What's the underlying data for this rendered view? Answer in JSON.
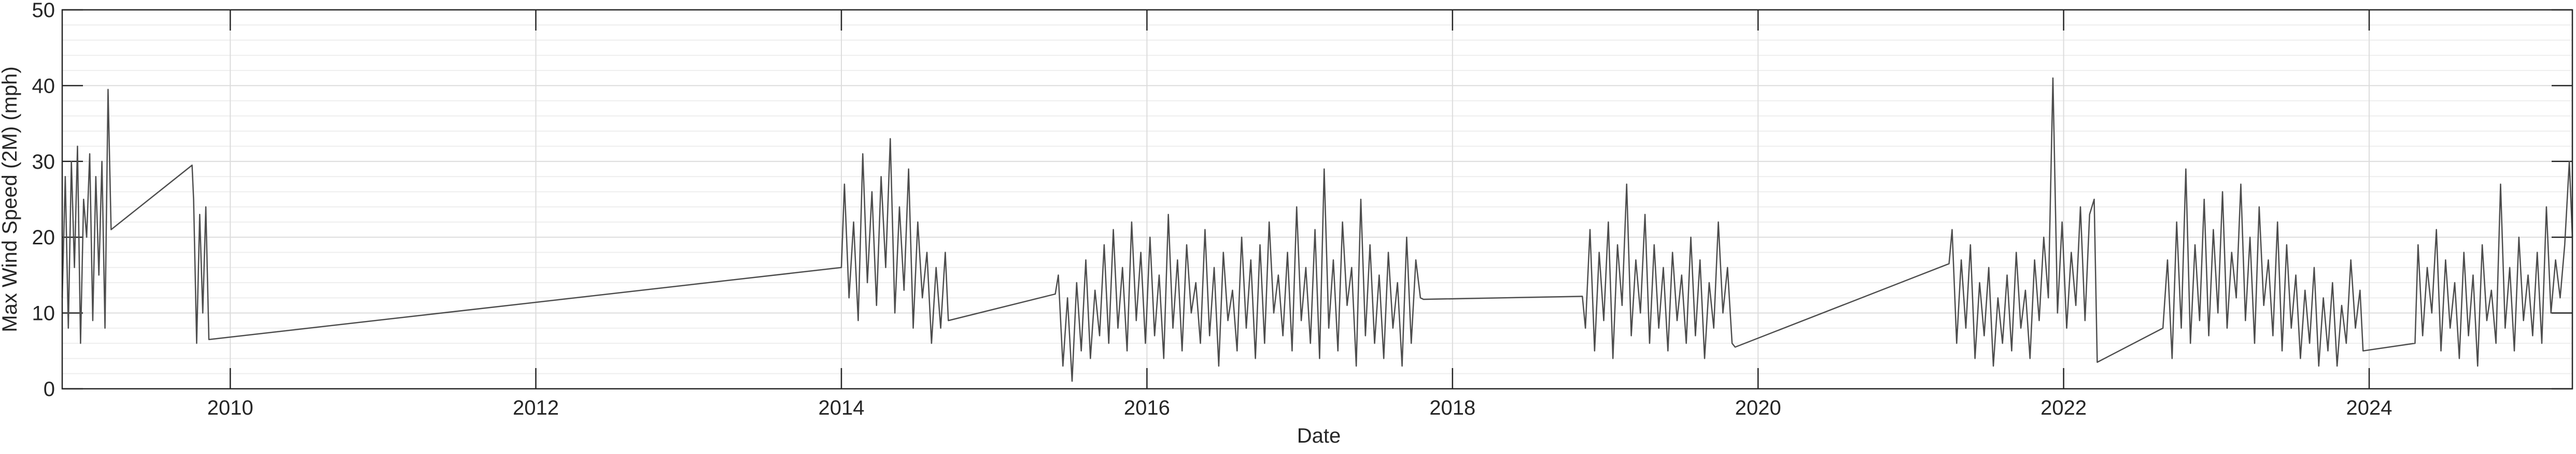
{
  "chart_data": {
    "type": "line",
    "x_label": "Date",
    "y_label": "Max Wind Speed (2M) (mph)",
    "color": "#4d4d4d",
    "grid": true,
    "minor_grid": true,
    "xlim": [
      2008.9,
      2025.33
    ],
    "xticks": [
      2010,
      2012,
      2014,
      2016,
      2018,
      2020,
      2022,
      2024
    ],
    "ylim": [
      0,
      50
    ],
    "yticks": [
      0,
      10,
      20,
      30,
      40,
      50
    ],
    "x": [
      2008.9,
      2008.92,
      2008.94,
      2008.96,
      2008.98,
      2009.0,
      2009.02,
      2009.04,
      2009.06,
      2009.08,
      2009.1,
      2009.12,
      2009.14,
      2009.16,
      2009.18,
      2009.2,
      2009.22,
      2009.75,
      2009.76,
      2009.78,
      2009.8,
      2009.82,
      2009.84,
      2009.86,
      2014.0,
      2014.02,
      2014.05,
      2014.08,
      2014.11,
      2014.14,
      2014.17,
      2014.2,
      2014.23,
      2014.26,
      2014.29,
      2014.32,
      2014.35,
      2014.38,
      2014.41,
      2014.44,
      2014.47,
      2014.5,
      2014.53,
      2014.56,
      2014.59,
      2014.62,
      2014.65,
      2014.68,
      2014.7,
      2015.4,
      2015.42,
      2015.45,
      2015.48,
      2015.51,
      2015.54,
      2015.57,
      2015.6,
      2015.63,
      2015.66,
      2015.69,
      2015.72,
      2015.75,
      2015.78,
      2015.81,
      2015.84,
      2015.87,
      2015.9,
      2015.93,
      2015.96,
      2015.99,
      2016.02,
      2016.05,
      2016.08,
      2016.11,
      2016.14,
      2016.17,
      2016.2,
      2016.23,
      2016.26,
      2016.29,
      2016.32,
      2016.35,
      2016.38,
      2016.41,
      2016.44,
      2016.47,
      2016.5,
      2016.53,
      2016.56,
      2016.59,
      2016.62,
      2016.65,
      2016.68,
      2016.71,
      2016.74,
      2016.77,
      2016.8,
      2016.83,
      2016.86,
      2016.89,
      2016.92,
      2016.95,
      2016.98,
      2017.01,
      2017.04,
      2017.07,
      2017.1,
      2017.13,
      2017.16,
      2017.19,
      2017.22,
      2017.25,
      2017.28,
      2017.31,
      2017.34,
      2017.37,
      2017.4,
      2017.43,
      2017.46,
      2017.49,
      2017.52,
      2017.55,
      2017.58,
      2017.61,
      2017.64,
      2017.67,
      2017.7,
      2017.73,
      2017.76,
      2017.79,
      2017.81,
      2018.85,
      2018.87,
      2018.9,
      2018.93,
      2018.96,
      2018.99,
      2019.02,
      2019.05,
      2019.08,
      2019.11,
      2019.14,
      2019.17,
      2019.2,
      2019.23,
      2019.26,
      2019.29,
      2019.32,
      2019.35,
      2019.38,
      2019.41,
      2019.44,
      2019.47,
      2019.5,
      2019.53,
      2019.56,
      2019.59,
      2019.62,
      2019.65,
      2019.68,
      2019.71,
      2019.74,
      2019.77,
      2019.8,
      2019.83,
      2019.85,
      2021.25,
      2021.27,
      2021.3,
      2021.33,
      2021.36,
      2021.39,
      2021.42,
      2021.45,
      2021.48,
      2021.51,
      2021.54,
      2021.57,
      2021.6,
      2021.63,
      2021.66,
      2021.69,
      2021.72,
      2021.75,
      2021.78,
      2021.81,
      2021.84,
      2021.87,
      2021.9,
      2021.93,
      2021.96,
      2021.99,
      2022.02,
      2022.05,
      2022.08,
      2022.11,
      2022.14,
      2022.17,
      2022.2,
      2022.22,
      2022.65,
      2022.68,
      2022.71,
      2022.74,
      2022.77,
      2022.8,
      2022.83,
      2022.86,
      2022.89,
      2022.92,
      2022.95,
      2022.98,
      2023.01,
      2023.04,
      2023.07,
      2023.1,
      2023.13,
      2023.16,
      2023.19,
      2023.22,
      2023.25,
      2023.28,
      2023.31,
      2023.34,
      2023.37,
      2023.4,
      2023.43,
      2023.46,
      2023.49,
      2023.52,
      2023.55,
      2023.58,
      2023.61,
      2023.64,
      2023.67,
      2023.7,
      2023.73,
      2023.76,
      2023.79,
      2023.82,
      2023.85,
      2023.88,
      2023.91,
      2023.94,
      2023.96,
      2024.3,
      2024.32,
      2024.35,
      2024.38,
      2024.41,
      2024.44,
      2024.47,
      2024.5,
      2024.53,
      2024.56,
      2024.59,
      2024.62,
      2024.65,
      2024.68,
      2024.71,
      2024.74,
      2024.77,
      2024.8,
      2024.83,
      2024.86,
      2024.89,
      2024.92,
      2024.95,
      2024.98,
      2025.01,
      2025.04,
      2025.07,
      2025.1,
      2025.13,
      2025.16,
      2025.19,
      2025.22,
      2025.25,
      2025.28,
      2025.31,
      2025.33
    ],
    "values": [
      12,
      28,
      8,
      30,
      16,
      32,
      6,
      25,
      20,
      31,
      9,
      28,
      15,
      30,
      8,
      39.5,
      21,
      29.5,
      25,
      6,
      23,
      10,
      24,
      6.5,
      16,
      27,
      12,
      22,
      9,
      31,
      14,
      26,
      11,
      28,
      16,
      33,
      10,
      24,
      13,
      29,
      8,
      22,
      12,
      18,
      6,
      16,
      8,
      18,
      9,
      12.5,
      15,
      3,
      12,
      1,
      14,
      5,
      17,
      4,
      13,
      7,
      19,
      6,
      21,
      8,
      16,
      5,
      22,
      9,
      18,
      6,
      20,
      7,
      15,
      4,
      23,
      8,
      17,
      5,
      19,
      10,
      14,
      6,
      21,
      7,
      16,
      3,
      18,
      9,
      13,
      5,
      20,
      8,
      17,
      4,
      19,
      6,
      22,
      10,
      15,
      7,
      18,
      5,
      24,
      9,
      16,
      6,
      21,
      4,
      29,
      8,
      17,
      5,
      22,
      11,
      16,
      3,
      25,
      7,
      19,
      6,
      15,
      4,
      18,
      8,
      14,
      3,
      20,
      6,
      17,
      12,
      11.8,
      12.2,
      8,
      21,
      5,
      18,
      9,
      22,
      4,
      19,
      11,
      27,
      7,
      17,
      10,
      23,
      6,
      19,
      8,
      16,
      5,
      18,
      9,
      15,
      6,
      20,
      7,
      17,
      4,
      14,
      8,
      22,
      10,
      16,
      6,
      5.5,
      16.5,
      21,
      6,
      17,
      8,
      19,
      4,
      14,
      7,
      16,
      3,
      12,
      6,
      15,
      5,
      18,
      8,
      13,
      4,
      17,
      9,
      20,
      12,
      41,
      10,
      22,
      8,
      18,
      11,
      24,
      9,
      23,
      25,
      3.5,
      8,
      17,
      4,
      22,
      8,
      29,
      6,
      19,
      9,
      25,
      7,
      21,
      10,
      26,
      8,
      18,
      12,
      27,
      9,
      20,
      6,
      24,
      11,
      17,
      7,
      22,
      5,
      19,
      8,
      15,
      4,
      13,
      6,
      16,
      3,
      12,
      5,
      14,
      3,
      11,
      6,
      17,
      8,
      13,
      5,
      6,
      19,
      7,
      16,
      10,
      21,
      5,
      17,
      8,
      14,
      4,
      18,
      7,
      15,
      3,
      19,
      9,
      13,
      6,
      27,
      8,
      16,
      5,
      20,
      9,
      15,
      7,
      18,
      6,
      24,
      10,
      17,
      12,
      19,
      30,
      20
    ]
  }
}
